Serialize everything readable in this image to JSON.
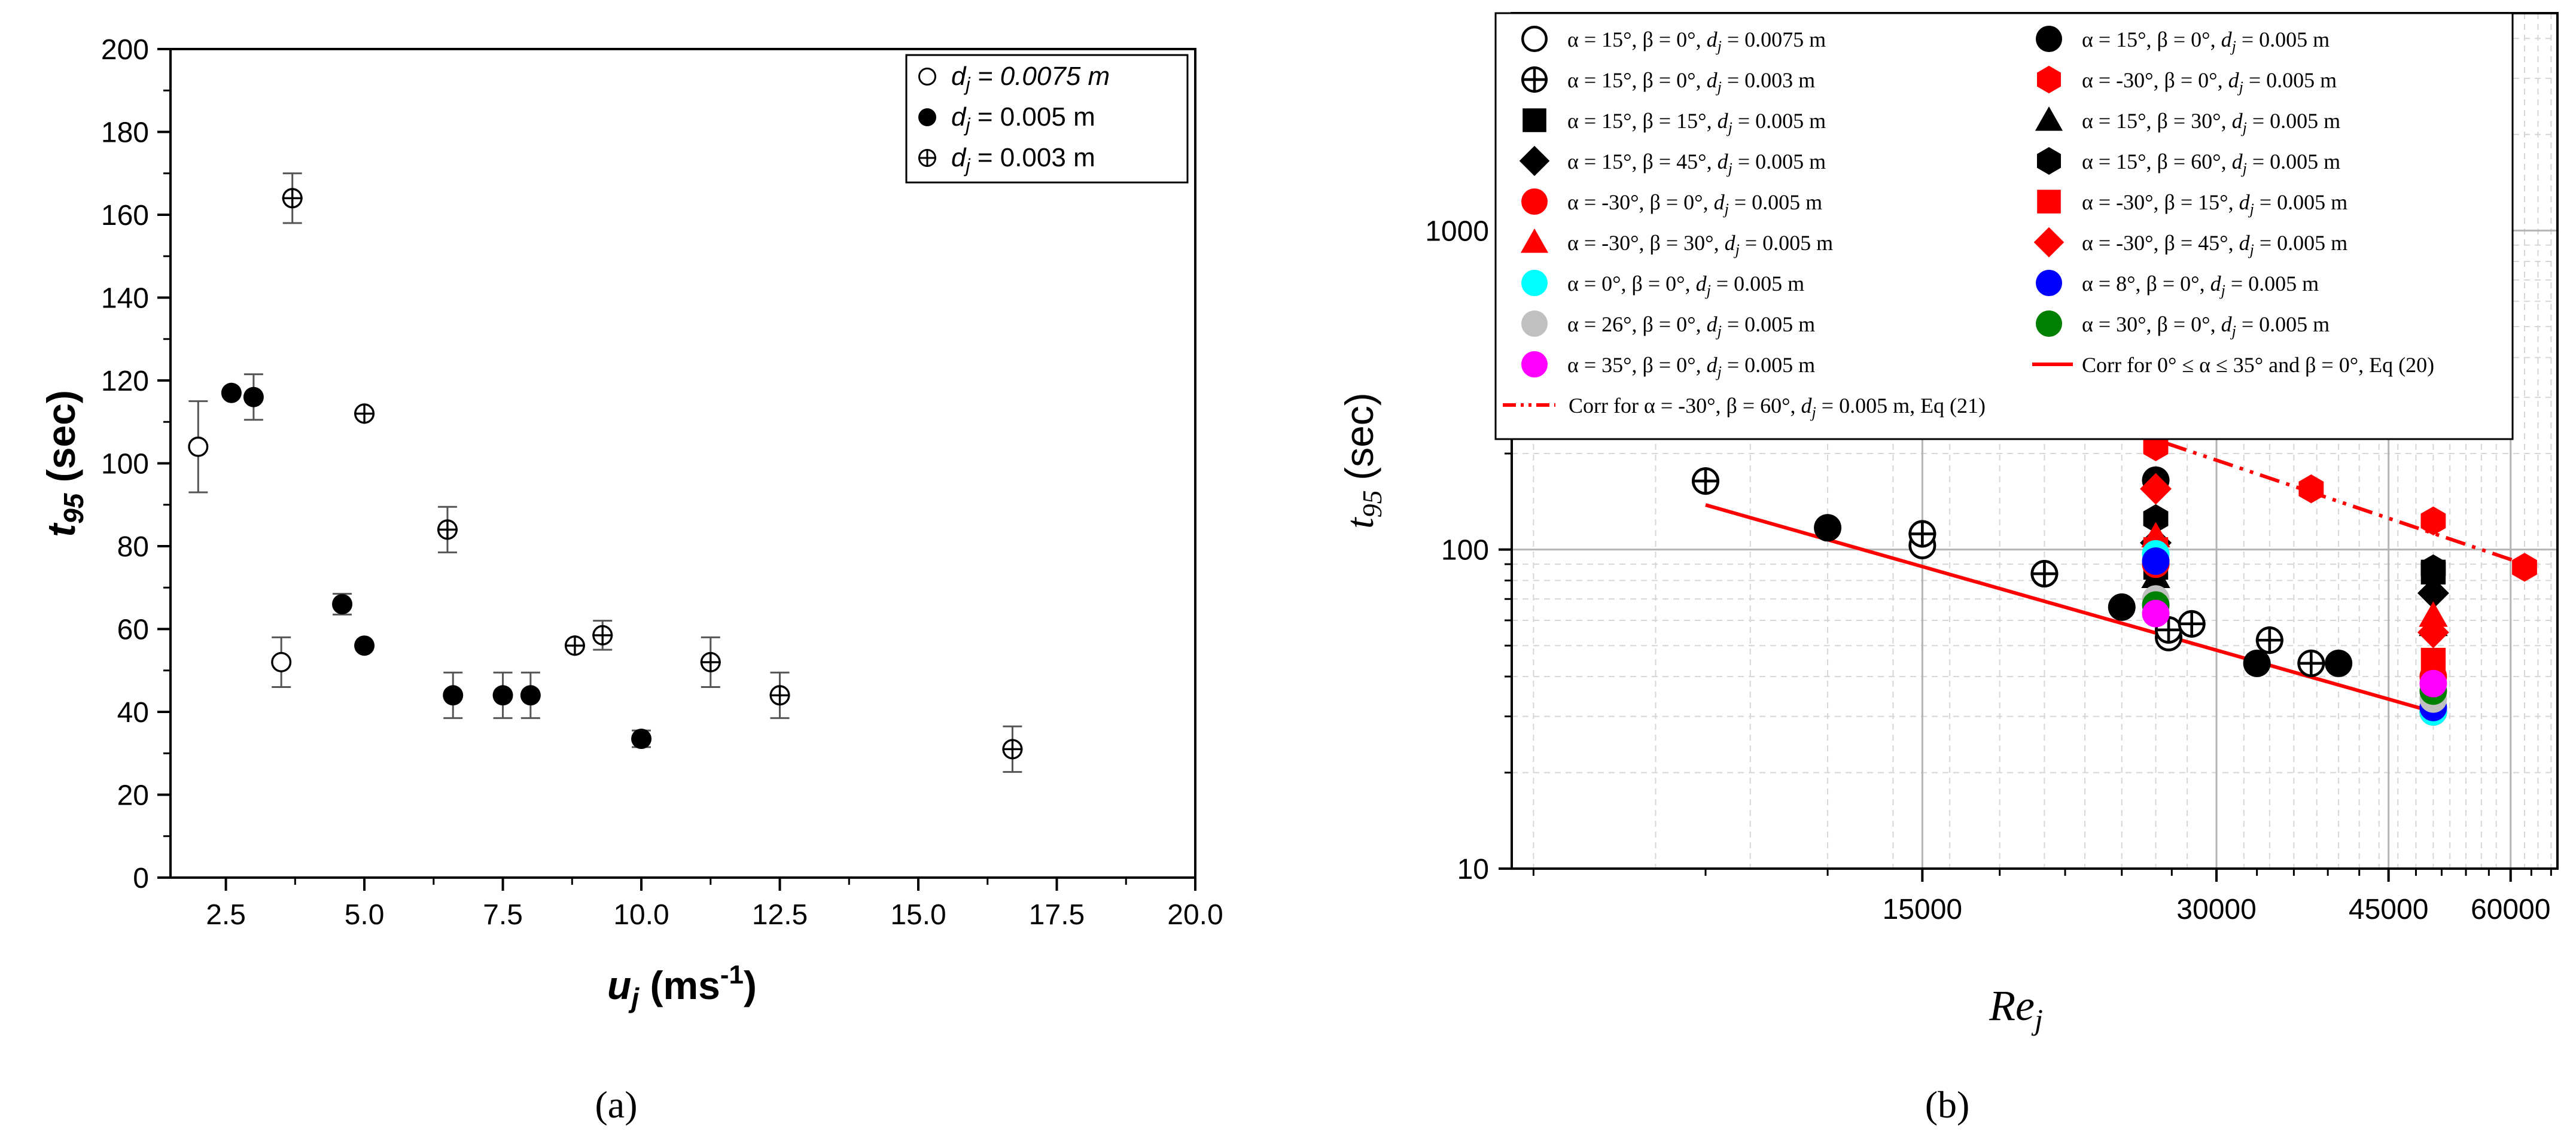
{
  "panels": {
    "a": {
      "label": "(a)"
    },
    "b": {
      "label": "(b)"
    }
  },
  "chart_data": [
    {
      "type": "scatter",
      "panel": "a",
      "xlabel_main": "u",
      "xlabel_sub": "j",
      "xlabel_units": "(ms",
      "xlabel_units_sup": "-1",
      "xlabel_units_close": ")",
      "ylabel_main": "t",
      "ylabel_sub": "95",
      "ylabel_units": "(sec)",
      "xlim": [
        1.5,
        20.0
      ],
      "ylim": [
        0,
        200
      ],
      "xticks": [
        2.5,
        5.0,
        7.5,
        10.0,
        12.5,
        15.0,
        17.5,
        20.0
      ],
      "xtick_labels": [
        "2.5",
        "5.0",
        "7.5",
        "10.0",
        "12.5",
        "15.0",
        "17.5",
        "20.0"
      ],
      "yticks": [
        0,
        20,
        40,
        60,
        80,
        100,
        120,
        140,
        160,
        180,
        200
      ],
      "ytick_labels": [
        "0",
        "20",
        "40",
        "60",
        "80",
        "100",
        "120",
        "140",
        "160",
        "180",
        "200"
      ],
      "legend_position": "top-right",
      "series": [
        {
          "name": "d_j = 0.0075 m",
          "legend_main": "d",
          "legend_sub": "j",
          "legend_rest": " = 0.0075 m",
          "marker": "open-circle",
          "points": [
            {
              "x": 2.0,
              "y": 104,
              "err": 11
            },
            {
              "x": 3.5,
              "y": 52,
              "err": 6
            }
          ]
        },
        {
          "name": "d_j = 0.005 m",
          "legend_main": "d",
          "legend_sub": "j",
          "legend_rest": " = 0.005 m",
          "marker": "filled-circle",
          "points": [
            {
              "x": 2.6,
              "y": 117,
              "err": 0
            },
            {
              "x": 3.0,
              "y": 116,
              "err": 5.5
            },
            {
              "x": 4.6,
              "y": 66,
              "err": 2.5
            },
            {
              "x": 5.0,
              "y": 56,
              "err": 0
            },
            {
              "x": 6.6,
              "y": 44,
              "err": 5.5
            },
            {
              "x": 7.5,
              "y": 44,
              "err": 5.5
            },
            {
              "x": 8.0,
              "y": 44,
              "err": 5.5
            },
            {
              "x": 10.0,
              "y": 33.5,
              "err": 2
            }
          ]
        },
        {
          "name": "d_j = 0.003 m",
          "legend_main": "d",
          "legend_sub": "j",
          "legend_rest": " = 0.003 m",
          "marker": "crossed-circle",
          "points": [
            {
              "x": 3.7,
              "y": 164,
              "err": 6
            },
            {
              "x": 5.0,
              "y": 112,
              "err": 0
            },
            {
              "x": 6.5,
              "y": 84,
              "err": 5.5
            },
            {
              "x": 8.8,
              "y": 56,
              "err": 0
            },
            {
              "x": 9.3,
              "y": 58.5,
              "err": 3.5
            },
            {
              "x": 11.25,
              "y": 52,
              "err": 6
            },
            {
              "x": 12.5,
              "y": 44,
              "err": 5.5
            },
            {
              "x": 16.7,
              "y": 31,
              "err": 5.5
            }
          ]
        }
      ]
    },
    {
      "type": "scatter",
      "panel": "b",
      "xscale": "log",
      "yscale": "log",
      "xlim": [
        5700,
        67000
      ],
      "ylim": [
        10,
        4800
      ],
      "xlabel_main": "Re",
      "xlabel_sub": "j",
      "ylabel_main": "t",
      "ylabel_sub": "95",
      "ylabel_units": "(sec)",
      "xticks": [
        15000,
        30000,
        45000,
        60000
      ],
      "xtick_labels": [
        "15000",
        "30000",
        "45000",
        "60000"
      ],
      "yticks": [
        10,
        100,
        1000
      ],
      "ytick_labels": [
        "10",
        "100",
        "1000"
      ],
      "grid": true,
      "legend_position": "top",
      "series": [
        {
          "name": "a15_b0_d0075",
          "legend": "α = 15°, β = 0°, d_j = 0.0075 m",
          "lg_prefix": "α = 15°, β = 0°, ",
          "lg_d": "d",
          "lg_sub": "j",
          "lg_rest": " = 0.0075 m",
          "marker": "open-circle",
          "color": "#000000",
          "points": [
            [
              15000,
              103
            ],
            [
              26800,
              53
            ]
          ]
        },
        {
          "name": "a15_b0_d005",
          "legend": "α = 15°, β = 0°, d_j = 0.005 m",
          "lg_prefix": "α = 15°, β = 0°, ",
          "lg_d": "d",
          "lg_sub": "j",
          "lg_rest": " = 0.005 m",
          "marker": "circle",
          "color": "#000000",
          "points": [
            [
              12000,
              117
            ],
            [
              24000,
              66
            ],
            [
              26000,
              165
            ],
            [
              33000,
              44
            ],
            [
              40000,
              44
            ]
          ]
        },
        {
          "name": "a15_b0_d003",
          "legend": "α = 15°, β = 0°, d_j = 0.003 m",
          "lg_prefix": "α = 15°, β = 0°, ",
          "lg_d": "d",
          "lg_sub": "j",
          "lg_rest": " = 0.003 m",
          "marker": "crossed-circle",
          "color": "#000000",
          "points": [
            [
              9000,
              164
            ],
            [
              15000,
              112
            ],
            [
              20000,
              84
            ],
            [
              26800,
              56
            ],
            [
              28300,
              58.5
            ],
            [
              34000,
              52
            ],
            [
              37500,
              44
            ],
            [
              50000,
              31
            ]
          ]
        },
        {
          "name": "am30_b0_hex",
          "legend": "α = -30°, β = 0°, d_j = 0.005 m",
          "lg_prefix": "α = -30°, β = 0°, ",
          "lg_d": "d",
          "lg_sub": "j",
          "lg_rest": " = 0.005 m",
          "marker": "hexagon",
          "color": "#ff0000",
          "points": [
            [
              26000,
              210
            ],
            [
              37500,
              155
            ],
            [
              50000,
              123
            ],
            [
              62000,
              88
            ]
          ]
        },
        {
          "name": "a15_b15",
          "legend": "α = 15°, β = 15°, d_j = 0.005 m",
          "lg_prefix": "α = 15°, β = 15°, ",
          "lg_d": "d",
          "lg_sub": "j",
          "lg_rest": " = 0.005 m",
          "marker": "square",
          "color": "#000000",
          "points": [
            [
              26000,
              88
            ],
            [
              50000,
              85
            ]
          ]
        },
        {
          "name": "a15_b30",
          "legend": "α = 15°, β = 30°, d_j = 0.005 m",
          "lg_prefix": "α = 15°, β = 30°, ",
          "lg_d": "d",
          "lg_sub": "j",
          "lg_rest": " = 0.005 m",
          "marker": "triangle",
          "color": "#000000",
          "points": [
            [
              26000,
              82
            ],
            [
              50000,
              58
            ]
          ]
        },
        {
          "name": "a15_b45",
          "legend": "α = 15°, β = 45°, d_j = 0.005 m",
          "lg_prefix": "α = 15°, β = 45°, ",
          "lg_d": "d",
          "lg_sub": "j",
          "lg_rest": " = 0.005 m",
          "marker": "diamond",
          "color": "#000000",
          "points": [
            [
              26000,
              105
            ],
            [
              50000,
              73
            ]
          ]
        },
        {
          "name": "a15_b60",
          "legend": "α = 15°, β = 60°, d_j = 0.005 m",
          "lg_prefix": "α = 15°, β = 60°, ",
          "lg_d": "d",
          "lg_sub": "j",
          "lg_rest": " = 0.005 m",
          "marker": "hexagon",
          "color": "#000000",
          "points": [
            [
              26000,
              125
            ],
            [
              50000,
              87
            ]
          ]
        },
        {
          "name": "am30_b0_circle",
          "legend": "α = -30°, β = 0°, d_j = 0.005 m",
          "lg_prefix": "α = -30°, β = 0°, ",
          "lg_d": "d",
          "lg_sub": "j",
          "lg_rest": " = 0.005 m",
          "marker": "circle",
          "color": "#ff0000",
          "points": [
            [
              26000,
              90
            ],
            [
              50000,
              40
            ]
          ]
        },
        {
          "name": "am30_b15",
          "legend": "α = -30°, β = 15°, d_j = 0.005 m",
          "lg_prefix": "α = -30°, β = 15°, ",
          "lg_d": "d",
          "lg_sub": "j",
          "lg_rest": " = 0.005 m",
          "marker": "square",
          "color": "#ff0000",
          "points": [
            [
              26000,
              100
            ],
            [
              50000,
              45
            ]
          ]
        },
        {
          "name": "am30_b30",
          "legend": "α = -30°, β = 30°, d_j = 0.005 m",
          "lg_prefix": "α = -30°, β = 30°, ",
          "lg_d": "d",
          "lg_sub": "j",
          "lg_rest": " = 0.005 m",
          "marker": "triangle",
          "color": "#ff0000",
          "points": [
            [
              26000,
              110
            ],
            [
              50000,
              62
            ]
          ]
        },
        {
          "name": "am30_b45",
          "legend": "α = -30°, β = 45°, d_j = 0.005 m",
          "lg_prefix": "α = -30°, β = 45°, ",
          "lg_d": "d",
          "lg_sub": "j",
          "lg_rest": " = 0.005 m",
          "marker": "diamond",
          "color": "#ff0000",
          "points": [
            [
              26000,
              155
            ],
            [
              50000,
              55
            ]
          ]
        },
        {
          "name": "a0_b0",
          "legend": "α = 0°, β = 0°, d_j = 0.005 m",
          "lg_prefix": "α = 0°, β = 0°, ",
          "lg_d": "d",
          "lg_sub": "j",
          "lg_rest": " = 0.005 m",
          "marker": "circle",
          "color": "#00ffff",
          "points": [
            [
              26000,
              97
            ],
            [
              50000,
              31
            ]
          ]
        },
        {
          "name": "a8_b0",
          "legend": "α = 8°, β = 0°, d_j = 0.005 m",
          "lg_prefix": "α = 8°, β = 0°, ",
          "lg_d": "d",
          "lg_sub": "j",
          "lg_rest": " = 0.005 m",
          "marker": "circle",
          "color": "#0000ff",
          "points": [
            [
              26000,
              92
            ],
            [
              50000,
              32
            ]
          ]
        },
        {
          "name": "a26_b0",
          "legend": "α = 26°, β = 0°, d_j = 0.005 m",
          "lg_prefix": "α = 26°, β = 0°, ",
          "lg_d": "d",
          "lg_sub": "j",
          "lg_rest": " = 0.005 m",
          "marker": "circle",
          "color": "#c0c0c0",
          "points": [
            [
              26000,
              70
            ],
            [
              50000,
              34
            ]
          ]
        },
        {
          "name": "a30_b0",
          "legend": "α = 30°, β = 0°, d_j = 0.005 m",
          "lg_prefix": "α = 30°, β = 0°, ",
          "lg_d": "d",
          "lg_sub": "j",
          "lg_rest": " = 0.005 m",
          "marker": "circle",
          "color": "#008000",
          "points": [
            [
              26000,
              67
            ],
            [
              50000,
              36
            ]
          ]
        },
        {
          "name": "a35_b0",
          "legend": "α = 35°, β = 0°, d_j = 0.005 m",
          "lg_prefix": "α = 35°, β = 0°, ",
          "lg_d": "d",
          "lg_sub": "j",
          "lg_rest": " = 0.005 m",
          "marker": "circle",
          "color": "#ff00ff",
          "points": [
            [
              26000,
              63
            ],
            [
              50000,
              38
            ]
          ]
        }
      ],
      "lines": [
        {
          "name": "eq20",
          "legend": "Corr for 0° ≤ α ≤ 35° and β = 0°, Eq (20)",
          "style": "solid",
          "color": "#ff0000",
          "points": [
            [
              9000,
              138
            ],
            [
              50000,
              31
            ]
          ]
        },
        {
          "name": "eq21",
          "legend_prefix": "Corr for α = -30°, β = 60°,  ",
          "lg_d": "d",
          "lg_sub": "j",
          "lg_rest": " = 0.005 m, Eq (21)",
          "style": "dash-dot-dot",
          "color": "#ff0000",
          "points": [
            [
              26700,
              215
            ],
            [
              62000,
              90
            ]
          ]
        }
      ],
      "legend_layout": {
        "rows": [
          [
            "a15_b0_d0075",
            "a15_b0_d005"
          ],
          [
            "a15_b0_d003",
            "am30_b0_hex"
          ],
          [
            "a15_b15",
            "a15_b30"
          ],
          [
            "a15_b45",
            "a15_b60"
          ],
          [
            "am30_b0_circle",
            "am30_b15"
          ],
          [
            "am30_b30",
            "am30_b45"
          ],
          [
            "a0_b0",
            "a8_b0"
          ],
          [
            "a26_b0",
            "a30_b0"
          ],
          [
            "a35_b0",
            "eq20"
          ]
        ],
        "last_row": "eq21"
      }
    }
  ]
}
